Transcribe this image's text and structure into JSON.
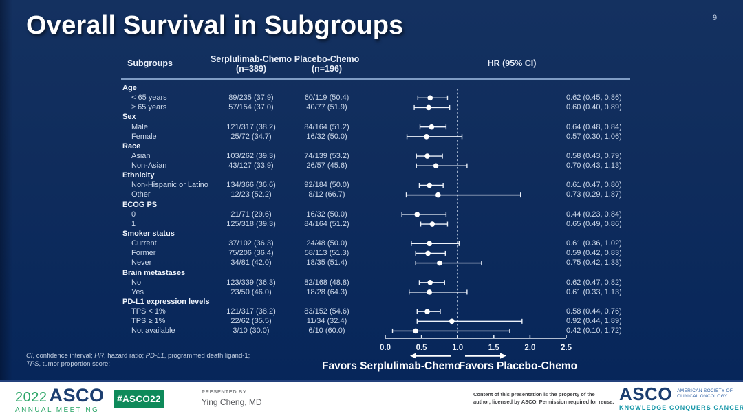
{
  "page_number": "9",
  "title": "Overall Survival in Subgroups",
  "table": {
    "col_headers": {
      "subgroups": "Subgroups",
      "serplulimab_line1": "Serplulimab-Chemo",
      "serplulimab_line2": "(n=389)",
      "placebo_line1": "Placebo-Chemo",
      "placebo_line2": "(n=196)",
      "hr": "HR (95% CI)"
    },
    "rows": [
      {
        "type": "section",
        "label": "Age"
      },
      {
        "type": "data",
        "label": "< 65 years",
        "serplulimab": "89/235 (37.9)",
        "placebo": "60/119 (50.4)",
        "hr_text": "0.62 (0.45, 0.86)"
      },
      {
        "type": "data",
        "label": "≥ 65 years",
        "serplulimab": "57/154 (37.0)",
        "placebo": "40/77 (51.9)",
        "hr_text": "0.60 (0.40, 0.89)"
      },
      {
        "type": "section",
        "label": "Sex"
      },
      {
        "type": "data",
        "label": "Male",
        "serplulimab": "121/317 (38.2)",
        "placebo": "84/164 (51.2)",
        "hr_text": "0.64 (0.48, 0.84)"
      },
      {
        "type": "data",
        "label": "Female",
        "serplulimab": "25/72 (34.7)",
        "placebo": "16/32 (50.0)",
        "hr_text": "0.57 (0.30, 1.06)"
      },
      {
        "type": "section",
        "label": "Race"
      },
      {
        "type": "data",
        "label": "Asian",
        "serplulimab": "103/262 (39.3)",
        "placebo": "74/139 (53.2)",
        "hr_text": "0.58 (0.43, 0.79)"
      },
      {
        "type": "data",
        "label": "Non-Asian",
        "serplulimab": "43/127 (33.9)",
        "placebo": "26/57 (45.6)",
        "hr_text": "0.70 (0.43, 1.13)"
      },
      {
        "type": "section",
        "label": "Ethnicity"
      },
      {
        "type": "data",
        "label": "Non-Hispanic or Latino",
        "serplulimab": "134/366 (36.6)",
        "placebo": "92/184 (50.0)",
        "hr_text": "0.61 (0.47, 0.80)"
      },
      {
        "type": "data",
        "label": "Other",
        "serplulimab": "12/23 (52.2)",
        "placebo": "8/12 (66.7)",
        "hr_text": "0.73 (0.29, 1.87)"
      },
      {
        "type": "section",
        "label": "ECOG PS"
      },
      {
        "type": "data",
        "label": "0",
        "serplulimab": "21/71 (29.6)",
        "placebo": "16/32 (50.0)",
        "hr_text": "0.44 (0.23, 0.84)"
      },
      {
        "type": "data",
        "label": "1",
        "serplulimab": "125/318 (39.3)",
        "placebo": "84/164 (51.2)",
        "hr_text": "0.65 (0.49, 0.86)"
      },
      {
        "type": "section",
        "label": "Smoker status"
      },
      {
        "type": "data",
        "label": "Current",
        "serplulimab": "37/102 (36.3)",
        "placebo": "24/48 (50.0)",
        "hr_text": "0.61 (0.36, 1.02)"
      },
      {
        "type": "data",
        "label": "Former",
        "serplulimab": "75/206 (36.4)",
        "placebo": "58/113 (51.3)",
        "hr_text": "0.59 (0.42, 0.83)"
      },
      {
        "type": "data",
        "label": "Never",
        "serplulimab": "34/81 (42.0)",
        "placebo": "18/35 (51.4)",
        "hr_text": "0.75 (0.42, 1.33)"
      },
      {
        "type": "section",
        "label": "Brain metastases"
      },
      {
        "type": "data",
        "label": "No",
        "serplulimab": "123/339 (36.3)",
        "placebo": "82/168 (48.8)",
        "hr_text": "0.62 (0.47, 0.82)"
      },
      {
        "type": "data",
        "label": "Yes",
        "serplulimab": "23/50 (46.0)",
        "placebo": "18/28 (64.3)",
        "hr_text": "0.61 (0.33, 1.13)"
      },
      {
        "type": "section",
        "label": "PD-L1 expression levels"
      },
      {
        "type": "data",
        "label": "TPS < 1%",
        "serplulimab": "121/317 (38.2)",
        "placebo": "83/152 (54.6)",
        "hr_text": "0.58 (0.44, 0.76)"
      },
      {
        "type": "data",
        "label": "TPS ≥ 1%",
        "serplulimab": "22/62 (35.5)",
        "placebo": "11/34 (32.4)",
        "hr_text": "0.92 (0.44, 1.89)"
      },
      {
        "type": "data",
        "label": "Not available",
        "serplulimab": "3/10 (30.0)",
        "placebo": "6/10 (60.0)",
        "hr_text": "0.42 (0.10, 1.72)"
      }
    ]
  },
  "chart_data": {
    "type": "scatter",
    "subtype": "forest-plot",
    "title": "Overall Survival in Subgroups",
    "xlabel": "HR (95% CI)",
    "xlim": [
      0,
      2.5
    ],
    "x_ticks": [
      0.0,
      0.5,
      1.0,
      1.5,
      2.0,
      2.5
    ],
    "reference_line": 1.0,
    "favors_left": "Favors Serplulimab-Chemo",
    "favors_right": "Favors Placebo-Chemo",
    "points": [
      {
        "group": "Age",
        "label": "< 65 years",
        "hr": 0.62,
        "ci": [
          0.45,
          0.86
        ]
      },
      {
        "group": "Age",
        "label": "≥ 65 years",
        "hr": 0.6,
        "ci": [
          0.4,
          0.89
        ]
      },
      {
        "group": "Sex",
        "label": "Male",
        "hr": 0.64,
        "ci": [
          0.48,
          0.84
        ]
      },
      {
        "group": "Sex",
        "label": "Female",
        "hr": 0.57,
        "ci": [
          0.3,
          1.06
        ]
      },
      {
        "group": "Race",
        "label": "Asian",
        "hr": 0.58,
        "ci": [
          0.43,
          0.79
        ]
      },
      {
        "group": "Race",
        "label": "Non-Asian",
        "hr": 0.7,
        "ci": [
          0.43,
          1.13
        ]
      },
      {
        "group": "Ethnicity",
        "label": "Non-Hispanic or Latino",
        "hr": 0.61,
        "ci": [
          0.47,
          0.8
        ]
      },
      {
        "group": "Ethnicity",
        "label": "Other",
        "hr": 0.73,
        "ci": [
          0.29,
          1.87
        ]
      },
      {
        "group": "ECOG PS",
        "label": "0",
        "hr": 0.44,
        "ci": [
          0.23,
          0.84
        ]
      },
      {
        "group": "ECOG PS",
        "label": "1",
        "hr": 0.65,
        "ci": [
          0.49,
          0.86
        ]
      },
      {
        "group": "Smoker status",
        "label": "Current",
        "hr": 0.61,
        "ci": [
          0.36,
          1.02
        ]
      },
      {
        "group": "Smoker status",
        "label": "Former",
        "hr": 0.59,
        "ci": [
          0.42,
          0.83
        ]
      },
      {
        "group": "Smoker status",
        "label": "Never",
        "hr": 0.75,
        "ci": [
          0.42,
          1.33
        ]
      },
      {
        "group": "Brain metastases",
        "label": "No",
        "hr": 0.62,
        "ci": [
          0.47,
          0.82
        ]
      },
      {
        "group": "Brain metastases",
        "label": "Yes",
        "hr": 0.61,
        "ci": [
          0.33,
          1.13
        ]
      },
      {
        "group": "PD-L1 expression levels",
        "label": "TPS < 1%",
        "hr": 0.58,
        "ci": [
          0.44,
          0.76
        ]
      },
      {
        "group": "PD-L1 expression levels",
        "label": "TPS ≥ 1%",
        "hr": 0.92,
        "ci": [
          0.44,
          1.89
        ]
      },
      {
        "group": "PD-L1 expression levels",
        "label": "Not available",
        "hr": 0.42,
        "ci": [
          0.1,
          1.72
        ]
      }
    ]
  },
  "axis": {
    "ticks": [
      "0.0",
      "0.5",
      "1.0",
      "1.5",
      "2.0",
      "2.5"
    ]
  },
  "favors": {
    "left": "Favors Serplulimab-Chemo",
    "right": "Favors Placebo-Chemo"
  },
  "footnote": {
    "line1": [
      {
        "t": "CI",
        "i": true
      },
      {
        "t": ", confidence interval; ",
        "i": false
      },
      {
        "t": "HR",
        "i": true
      },
      {
        "t": ", hazard ratio; ",
        "i": false
      },
      {
        "t": "PD-L1",
        "i": true
      },
      {
        "t": ", programmed death ligand-1;",
        "i": false
      }
    ],
    "line2": [
      {
        "t": "TPS",
        "i": true
      },
      {
        "t": ", tumor proportion score;",
        "i": false
      }
    ]
  },
  "footer": {
    "logo_year": "2022",
    "logo_name": "ASCO",
    "logo_sub": "ANNUAL MEETING",
    "hashtag": "#ASCO22",
    "presented_by_label": "PRESENTED BY:",
    "presenter": "Ying Cheng, MD",
    "copyright_line1": "Content of this presentation is the property of the",
    "copyright_line2": "author, licensed by ASCO. Permission required for reuse.",
    "asco_name": "ASCO",
    "asco_society_line1": "AMERICAN SOCIETY OF",
    "asco_society_line2": "CLINICAL ONCOLOGY",
    "asco_tagline": "KNOWLEDGE CONQUERS CANCER"
  },
  "colors": {
    "background_navy": "#0f2c5c",
    "header_rule": "#7f9cc4",
    "marker_white": "#ffffff",
    "asco_navy": "#1c3e70",
    "asco_green": "#2ba567",
    "badge_green": "#0e8a5a",
    "tagline_teal": "#1a98a9"
  }
}
